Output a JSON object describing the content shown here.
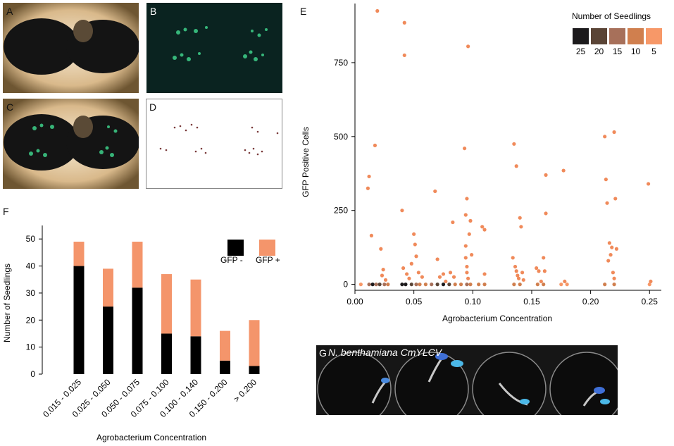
{
  "panels": {
    "a": "A",
    "b": "B",
    "c": "C",
    "d": "D",
    "e": "E",
    "f": "F",
    "g": "G"
  },
  "panel_g_caption": "N. benthamiana CmYLCV",
  "colors": {
    "gfp_neg": "#000000",
    "gfp_pos": "#f4956b",
    "scatter_point": "#f08a5a",
    "legend_scale": [
      "#1c1a1c",
      "#5a4436",
      "#a7705a",
      "#d07f4e",
      "#f79868"
    ]
  },
  "chart_data": [
    {
      "type": "bar",
      "panel": "F",
      "stacked": true,
      "categories": [
        "0.015 - 0.025",
        "0.025 - 0.050",
        "0.050 - 0.075",
        "0.075 - 0.100",
        "0.100 - 0.140",
        "0.150 - 0.200",
        "> 0.200"
      ],
      "series": [
        {
          "name": "GFP -",
          "values": [
            40,
            25,
            32,
            15,
            14,
            5,
            3
          ]
        },
        {
          "name": "GFP +",
          "values": [
            9,
            14,
            17,
            22,
            21,
            11,
            17
          ]
        }
      ],
      "xlabel": "Agrobacterium Concentration",
      "ylabel": "Number of Seedlings",
      "ylim": [
        0,
        55
      ],
      "yticks": [
        0,
        10,
        20,
        30,
        40,
        50
      ],
      "legend": "top-right"
    },
    {
      "type": "scatter",
      "panel": "E",
      "xlabel": "Agrobacterium Concentration",
      "ylabel": "GFP Positive Cells",
      "xlim": [
        0,
        0.26
      ],
      "ylim": [
        -20,
        950
      ],
      "xticks": [
        0.0,
        0.05,
        0.1,
        0.15,
        0.2,
        0.25
      ],
      "xtick_labels": [
        "0.00",
        "0.05",
        "0.10",
        "0.15",
        "0.20",
        "0.25"
      ],
      "yticks": [
        0,
        250,
        500,
        750
      ],
      "legend_title": "Number of Seedlings",
      "legend_labels": [
        "25",
        "20",
        "15",
        "10",
        "5"
      ],
      "legend": "top-right",
      "zero_points": [
        [
          0.005,
          0,
          1
        ],
        [
          0.012,
          0,
          3
        ],
        [
          0.015,
          0,
          5
        ],
        [
          0.018,
          0,
          3
        ],
        [
          0.021,
          0,
          4
        ],
        [
          0.025,
          0,
          3
        ],
        [
          0.028,
          0,
          2
        ],
        [
          0.04,
          0,
          5
        ],
        [
          0.043,
          0,
          5
        ],
        [
          0.048,
          0,
          4
        ],
        [
          0.052,
          0,
          3
        ],
        [
          0.055,
          0,
          2
        ],
        [
          0.06,
          0,
          2
        ],
        [
          0.065,
          0,
          3
        ],
        [
          0.07,
          0,
          4
        ],
        [
          0.075,
          0,
          5
        ],
        [
          0.08,
          0,
          4
        ],
        [
          0.085,
          0,
          2
        ],
        [
          0.09,
          0,
          2
        ],
        [
          0.095,
          0,
          3
        ],
        [
          0.098,
          0,
          2
        ],
        [
          0.105,
          0,
          2
        ],
        [
          0.11,
          0,
          2
        ],
        [
          0.135,
          0,
          2
        ],
        [
          0.14,
          0,
          2
        ],
        [
          0.155,
          0,
          2
        ],
        [
          0.16,
          0,
          2
        ],
        [
          0.175,
          0,
          1
        ],
        [
          0.18,
          0,
          1
        ],
        [
          0.212,
          0,
          2
        ],
        [
          0.22,
          0,
          2
        ],
        [
          0.25,
          0,
          1
        ]
      ],
      "points": [
        [
          0.011,
          325
        ],
        [
          0.012,
          365
        ],
        [
          0.014,
          165
        ],
        [
          0.017,
          470
        ],
        [
          0.019,
          925
        ],
        [
          0.022,
          120
        ],
        [
          0.023,
          30
        ],
        [
          0.024,
          50
        ],
        [
          0.026,
          15
        ],
        [
          0.04,
          250
        ],
        [
          0.041,
          55
        ],
        [
          0.042,
          885
        ],
        [
          0.042,
          775
        ],
        [
          0.044,
          35
        ],
        [
          0.046,
          20
        ],
        [
          0.048,
          70
        ],
        [
          0.05,
          170
        ],
        [
          0.051,
          135
        ],
        [
          0.052,
          95
        ],
        [
          0.054,
          40
        ],
        [
          0.057,
          25
        ],
        [
          0.068,
          315
        ],
        [
          0.07,
          85
        ],
        [
          0.072,
          25
        ],
        [
          0.075,
          35
        ],
        [
          0.077,
          10
        ],
        [
          0.081,
          40
        ],
        [
          0.083,
          210
        ],
        [
          0.084,
          25
        ],
        [
          0.093,
          460
        ],
        [
          0.094,
          235
        ],
        [
          0.095,
          290
        ],
        [
          0.094,
          130
        ],
        [
          0.096,
          805
        ],
        [
          0.095,
          60
        ],
        [
          0.094,
          90
        ],
        [
          0.095,
          40
        ],
        [
          0.096,
          20
        ],
        [
          0.097,
          170
        ],
        [
          0.098,
          215
        ],
        [
          0.099,
          100
        ],
        [
          0.108,
          195
        ],
        [
          0.11,
          185
        ],
        [
          0.11,
          35
        ],
        [
          0.135,
          475
        ],
        [
          0.137,
          400
        ],
        [
          0.134,
          90
        ],
        [
          0.136,
          60
        ],
        [
          0.137,
          45
        ],
        [
          0.138,
          30
        ],
        [
          0.139,
          20
        ],
        [
          0.14,
          225
        ],
        [
          0.141,
          195
        ],
        [
          0.142,
          40
        ],
        [
          0.143,
          15
        ],
        [
          0.154,
          55
        ],
        [
          0.156,
          45
        ],
        [
          0.158,
          10
        ],
        [
          0.16,
          90
        ],
        [
          0.161,
          45
        ],
        [
          0.162,
          370
        ],
        [
          0.162,
          240
        ],
        [
          0.177,
          385
        ],
        [
          0.178,
          10
        ],
        [
          0.212,
          500
        ],
        [
          0.213,
          355
        ],
        [
          0.214,
          275
        ],
        [
          0.215,
          80
        ],
        [
          0.216,
          140
        ],
        [
          0.217,
          100
        ],
        [
          0.218,
          125
        ],
        [
          0.219,
          40
        ],
        [
          0.22,
          20
        ],
        [
          0.22,
          515
        ],
        [
          0.221,
          290
        ],
        [
          0.222,
          120
        ],
        [
          0.249,
          340
        ],
        [
          0.251,
          10
        ]
      ]
    }
  ]
}
